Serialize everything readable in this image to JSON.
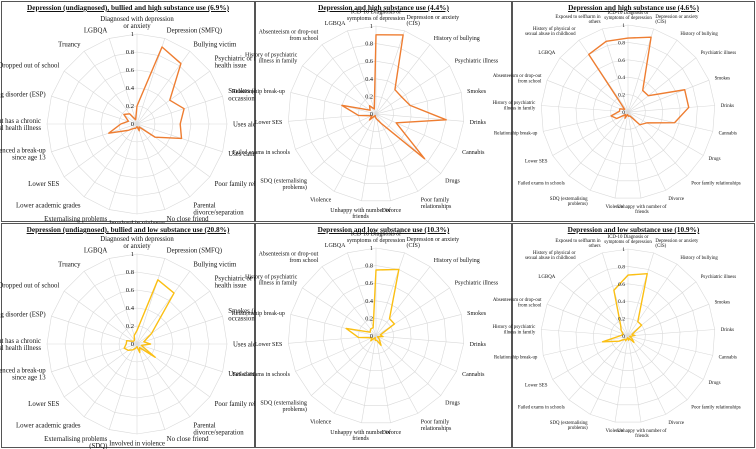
{
  "colors": {
    "high": "#ee7d31",
    "low": "#fbbf13",
    "grid": "#d9d9d9"
  },
  "chart_data": [
    {
      "type": "radar",
      "title": "Depression (undiagnosed), bullied and high substance use (6.9%)",
      "series_color": "high",
      "axis_ticks": [
        "1",
        "0.8",
        "0.6",
        "0.4",
        "0.2",
        "0"
      ],
      "rlim": [
        0,
        1
      ],
      "grid": true,
      "categories": [
        "Diagnosed with depression or anxiety",
        "Depression (SMFQ)",
        "Bullying victim",
        "Psychiatric or mental health issue",
        "Smokes (daily or occassionally)",
        "Uses alcohol",
        "Uses cannabis or drugs",
        "Poor family relationships",
        "Parental divorce/separation",
        "No close friend",
        "Involved in violence",
        "Externalising problems (SDQ)",
        "Lower academic grades",
        "Lower SES",
        "Experienced a break-up since age 13",
        "Parent has a chronic mental health illness",
        "Has eating disorder (ESP)",
        "Dropped out of school",
        "Truancy",
        "LGBQA"
      ],
      "values": [
        0.2,
        0.9,
        0.83,
        0.45,
        0.55,
        0.48,
        0.52,
        0.25,
        0.04,
        0.08,
        0.03,
        0.05,
        0.06,
        0.12,
        0.33,
        0.18,
        0.1,
        0.18,
        0.14,
        0.05
      ]
    },
    {
      "type": "radar",
      "title": "Depression and high substance use (4.4%)",
      "series_color": "high",
      "axis_ticks": [
        "1",
        "0.8",
        "0.6",
        "0.4",
        "0.2",
        "0"
      ],
      "rlim": [
        0,
        1
      ],
      "grid": true,
      "categories": [
        "ICD-10 Diagnosis or symptoms of depression",
        "Depression or anxiety (CIS)",
        "History of bullying",
        "Psychiatric illness",
        "Smokes",
        "Drinks",
        "Cannabis",
        "Drugs",
        "Poor family relationships",
        "Divorce",
        "Unhappy with number of friends",
        "Violence",
        "SDQ (externalising problems)",
        "Failed exams in schools",
        "Lower SES",
        "Relationship break-up",
        "History of psychiatric illness in family",
        "Absenteeism or drop-out from school",
        "LGBQA"
      ],
      "values": [
        0.9,
        0.95,
        0.35,
        0.35,
        0.4,
        0.8,
        0.25,
        0.75,
        0.12,
        0.06,
        0.04,
        0.02,
        0.1,
        0.05,
        0.2,
        0.4,
        0.08,
        0.12,
        0.06
      ]
    },
    {
      "type": "radar",
      "title": "Depression and high substance use (4.6%)",
      "series_color": "high",
      "axis_ticks": [
        "1",
        "0.8",
        "0.6",
        "0.4",
        "0.2",
        "0"
      ],
      "rlim": [
        0,
        1
      ],
      "grid": true,
      "categories": [
        "ICD-10 Diagnosis or symptoms of depression",
        "Depression or anxiety (CIS)",
        "History of bullying",
        "Psychiatric illness",
        "Smokes",
        "Drinks",
        "Cannabis",
        "Drugs",
        "Poor family relationships",
        "Divorce",
        "Unhappy with number of friends",
        "Violence",
        "SDQ (externalising problems)",
        "Failed exams in schools",
        "Lower SES",
        "Relationship break-up",
        "History of psychiatric illness in family",
        "Absenteeism or drop-out from school",
        "LGBQA",
        "History of physical or sexual abuse in childhood",
        "Exposed to selfharm in others"
      ],
      "values": [
        0.85,
        0.9,
        0.3,
        0.3,
        0.7,
        0.7,
        0.55,
        0.25,
        0.2,
        0.05,
        0.05,
        0.03,
        0.08,
        0.04,
        0.15,
        0.2,
        0.1,
        0.1,
        0.05,
        0.8,
        0.85
      ]
    },
    {
      "type": "radar",
      "title": "Depression (undiagnosed), bullied and low substance use (20.8%)",
      "series_color": "low",
      "axis_ticks": [
        "1",
        "0.8",
        "0.6",
        "0.4",
        "0.2",
        "0"
      ],
      "rlim": [
        0,
        1
      ],
      "grid": true,
      "categories": [
        "Diagnosed with depression or anxiety",
        "Depression (SMFQ)",
        "Bullying victim",
        "Psychiatric or mental health issue",
        "Smokes (daily or occassionally)",
        "Uses alcohol",
        "Uses cannabis or drugs",
        "Poor family relationships",
        "Parental divorce/separation",
        "No close friend",
        "Involved in violence",
        "Externalising problems (SDQ)",
        "Lower academic grades",
        "Lower SES",
        "Experienced a break-up since age 13",
        "Parent has a chronic mental health illness",
        "Has eating disorder (ESP)",
        "Dropped out of school",
        "Truancy",
        "LGBQA"
      ],
      "values": [
        0.15,
        0.75,
        0.7,
        0.2,
        0.08,
        0.15,
        0.05,
        0.25,
        0.05,
        0.1,
        0.03,
        0.05,
        0.08,
        0.12,
        0.15,
        0.12,
        0.12,
        0.05,
        0.05,
        0.1
      ]
    },
    {
      "type": "radar",
      "title": "Depression and low substance use (10.3%)",
      "series_color": "low",
      "axis_ticks": [
        "1",
        "0.8",
        "0.6",
        "0.4",
        "0.2",
        "0"
      ],
      "rlim": [
        0,
        1
      ],
      "grid": true,
      "categories": [
        "ICD-10 Diagnosis or symptoms of depression",
        "Depression or anxiety (CIS)",
        "History of bullying",
        "Psychiatric illness",
        "Smokes",
        "Drinks",
        "Cannabis",
        "Drugs",
        "Poor family relationships",
        "Divorce",
        "Unhappy with number of friends",
        "Violence",
        "SDQ (externalising problems)",
        "Failed exams in schools",
        "Lower SES",
        "Relationship break-up",
        "History of psychiatric illness in family",
        "Absenteeism or drop-out from school",
        "LGBQA"
      ],
      "values": [
        0.75,
        0.8,
        0.25,
        0.25,
        0.05,
        0.08,
        0.02,
        0.05,
        0.12,
        0.05,
        0.05,
        0.02,
        0.08,
        0.05,
        0.2,
        0.35,
        0.08,
        0.1,
        0.1
      ]
    },
    {
      "type": "radar",
      "title": "Depression and low substance use (10.9%)",
      "series_color": "low",
      "axis_ticks": [
        "1",
        "0.8",
        "0.6",
        "0.4",
        "0.2",
        "0"
      ],
      "rlim": [
        0,
        1
      ],
      "grid": true,
      "categories": [
        "ICD-10 Diagnosis or symptoms of depression",
        "Depression or anxiety (CIS)",
        "History of bullying",
        "Psychiatric illness",
        "Smokes",
        "Drinks",
        "Cannabis",
        "Drugs",
        "Poor family relationships",
        "Divorce",
        "Unhappy with number of friends",
        "Violence",
        "SDQ (externalising problems)",
        "Failed exams in schools",
        "Lower SES",
        "Relationship break-up",
        "History of psychiatric illness in family",
        "Absenteeism or drop-out from school",
        "LGBQA",
        "History of physical or sexual abuse in childhood",
        "Exposed to selfharm in others"
      ],
      "values": [
        0.7,
        0.75,
        0.2,
        0.2,
        0.05,
        0.08,
        0.02,
        0.05,
        0.1,
        0.03,
        0.05,
        0.02,
        0.06,
        0.05,
        0.12,
        0.3,
        0.08,
        0.06,
        0.1,
        0.15,
        0.55
      ]
    }
  ]
}
